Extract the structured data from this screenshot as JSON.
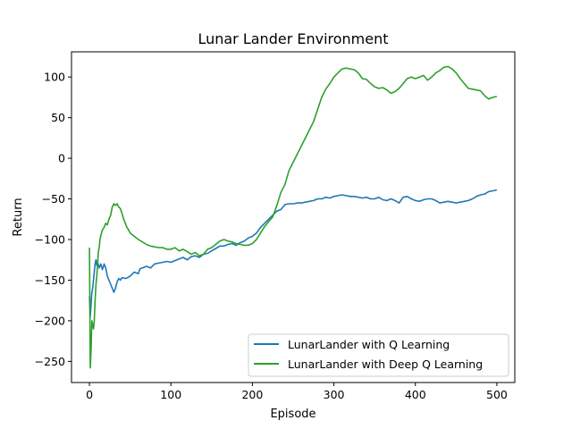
{
  "chart_data": {
    "type": "line",
    "title": "Lunar Lander Environment",
    "xlabel": "Episode",
    "ylabel": "Return",
    "xlim": [
      -22,
      522
    ],
    "ylim": [
      -276,
      131
    ],
    "xticks": [
      0,
      100,
      200,
      300,
      400,
      500
    ],
    "yticks": [
      -250,
      -200,
      -150,
      -100,
      -50,
      0,
      50,
      100
    ],
    "xtick_labels": [
      "0",
      "100",
      "200",
      "300",
      "400",
      "500"
    ],
    "ytick_labels": [
      "−250",
      "−200",
      "−150",
      "−100",
      "−50",
      "0",
      "50",
      "100"
    ],
    "grid": false,
    "legend_position": "lower-right",
    "series": [
      {
        "name": "LunarLander with Q Learning",
        "color": "#1f77b4",
        "points": [
          [
            0,
            -170
          ],
          [
            1,
            -195
          ],
          [
            2,
            -180
          ],
          [
            3,
            -165
          ],
          [
            4,
            -160
          ],
          [
            5,
            -150
          ],
          [
            6,
            -140
          ],
          [
            7,
            -130
          ],
          [
            8,
            -125
          ],
          [
            9,
            -132
          ],
          [
            10,
            -128
          ],
          [
            12,
            -135
          ],
          [
            14,
            -130
          ],
          [
            16,
            -137
          ],
          [
            18,
            -130
          ],
          [
            20,
            -135
          ],
          [
            22,
            -145
          ],
          [
            24,
            -150
          ],
          [
            26,
            -155
          ],
          [
            28,
            -160
          ],
          [
            30,
            -165
          ],
          [
            32,
            -160
          ],
          [
            34,
            -152
          ],
          [
            36,
            -148
          ],
          [
            38,
            -150
          ],
          [
            40,
            -147
          ],
          [
            45,
            -148
          ],
          [
            50,
            -145
          ],
          [
            55,
            -140
          ],
          [
            60,
            -142
          ],
          [
            62,
            -136
          ],
          [
            65,
            -135
          ],
          [
            70,
            -133
          ],
          [
            75,
            -135
          ],
          [
            80,
            -130
          ],
          [
            85,
            -129
          ],
          [
            90,
            -128
          ],
          [
            95,
            -127
          ],
          [
            100,
            -128
          ],
          [
            105,
            -126
          ],
          [
            110,
            -124
          ],
          [
            115,
            -122
          ],
          [
            120,
            -125
          ],
          [
            125,
            -121
          ],
          [
            130,
            -120
          ],
          [
            135,
            -122
          ],
          [
            140,
            -118
          ],
          [
            145,
            -117
          ],
          [
            150,
            -114
          ],
          [
            155,
            -111
          ],
          [
            160,
            -108
          ],
          [
            165,
            -108
          ],
          [
            170,
            -106
          ],
          [
            175,
            -105
          ],
          [
            180,
            -107
          ],
          [
            185,
            -104
          ],
          [
            190,
            -102
          ],
          [
            195,
            -98
          ],
          [
            200,
            -96
          ],
          [
            205,
            -92
          ],
          [
            210,
            -85
          ],
          [
            215,
            -80
          ],
          [
            220,
            -75
          ],
          [
            225,
            -70
          ],
          [
            230,
            -65
          ],
          [
            235,
            -63
          ],
          [
            240,
            -57
          ],
          [
            245,
            -56
          ],
          [
            250,
            -56
          ],
          [
            255,
            -55
          ],
          [
            260,
            -55
          ],
          [
            265,
            -54
          ],
          [
            270,
            -53
          ],
          [
            275,
            -52
          ],
          [
            280,
            -50
          ],
          [
            285,
            -50
          ],
          [
            290,
            -48
          ],
          [
            295,
            -49
          ],
          [
            300,
            -47
          ],
          [
            305,
            -46
          ],
          [
            310,
            -45
          ],
          [
            315,
            -46
          ],
          [
            320,
            -47
          ],
          [
            325,
            -47
          ],
          [
            330,
            -48
          ],
          [
            335,
            -49
          ],
          [
            340,
            -48
          ],
          [
            345,
            -50
          ],
          [
            350,
            -50
          ],
          [
            355,
            -48
          ],
          [
            360,
            -51
          ],
          [
            365,
            -52
          ],
          [
            370,
            -50
          ],
          [
            375,
            -52
          ],
          [
            380,
            -55
          ],
          [
            385,
            -48
          ],
          [
            390,
            -47
          ],
          [
            395,
            -50
          ],
          [
            400,
            -52
          ],
          [
            405,
            -53
          ],
          [
            410,
            -51
          ],
          [
            415,
            -50
          ],
          [
            420,
            -50
          ],
          [
            425,
            -52
          ],
          [
            430,
            -55
          ],
          [
            435,
            -54
          ],
          [
            440,
            -53
          ],
          [
            445,
            -54
          ],
          [
            450,
            -55
          ],
          [
            455,
            -54
          ],
          [
            460,
            -53
          ],
          [
            465,
            -52
          ],
          [
            470,
            -50
          ],
          [
            475,
            -47
          ],
          [
            480,
            -45
          ],
          [
            485,
            -44
          ],
          [
            490,
            -41
          ],
          [
            495,
            -40
          ],
          [
            500,
            -39
          ]
        ]
      },
      {
        "name": "LunarLander with Deep Q Learning",
        "color": "#2ca02c",
        "points": [
          [
            0,
            -110
          ],
          [
            1,
            -258
          ],
          [
            2,
            -235
          ],
          [
            3,
            -200
          ],
          [
            4,
            -205
          ],
          [
            5,
            -210
          ],
          [
            6,
            -200
          ],
          [
            7,
            -175
          ],
          [
            8,
            -155
          ],
          [
            9,
            -145
          ],
          [
            10,
            -130
          ],
          [
            11,
            -115
          ],
          [
            12,
            -110
          ],
          [
            13,
            -100
          ],
          [
            14,
            -95
          ],
          [
            16,
            -88
          ],
          [
            18,
            -85
          ],
          [
            20,
            -80
          ],
          [
            22,
            -82
          ],
          [
            24,
            -75
          ],
          [
            26,
            -70
          ],
          [
            28,
            -60
          ],
          [
            30,
            -56
          ],
          [
            32,
            -58
          ],
          [
            34,
            -56
          ],
          [
            36,
            -60
          ],
          [
            38,
            -62
          ],
          [
            40,
            -68
          ],
          [
            42,
            -75
          ],
          [
            44,
            -80
          ],
          [
            46,
            -85
          ],
          [
            48,
            -88
          ],
          [
            50,
            -92
          ],
          [
            55,
            -96
          ],
          [
            60,
            -100
          ],
          [
            65,
            -103
          ],
          [
            70,
            -106
          ],
          [
            75,
            -108
          ],
          [
            80,
            -109
          ],
          [
            85,
            -110
          ],
          [
            90,
            -110
          ],
          [
            95,
            -112
          ],
          [
            100,
            -112
          ],
          [
            105,
            -110
          ],
          [
            110,
            -114
          ],
          [
            115,
            -112
          ],
          [
            120,
            -115
          ],
          [
            125,
            -118
          ],
          [
            130,
            -116
          ],
          [
            135,
            -120
          ],
          [
            140,
            -118
          ],
          [
            145,
            -112
          ],
          [
            150,
            -110
          ],
          [
            155,
            -106
          ],
          [
            160,
            -102
          ],
          [
            165,
            -100
          ],
          [
            170,
            -102
          ],
          [
            175,
            -103
          ],
          [
            180,
            -105
          ],
          [
            185,
            -106
          ],
          [
            190,
            -107
          ],
          [
            195,
            -107
          ],
          [
            200,
            -105
          ],
          [
            205,
            -100
          ],
          [
            210,
            -92
          ],
          [
            215,
            -84
          ],
          [
            220,
            -78
          ],
          [
            225,
            -72
          ],
          [
            230,
            -58
          ],
          [
            235,
            -42
          ],
          [
            240,
            -32
          ],
          [
            245,
            -15
          ],
          [
            250,
            -5
          ],
          [
            255,
            5
          ],
          [
            260,
            15
          ],
          [
            265,
            25
          ],
          [
            270,
            35
          ],
          [
            275,
            45
          ],
          [
            280,
            60
          ],
          [
            285,
            75
          ],
          [
            290,
            85
          ],
          [
            295,
            92
          ],
          [
            300,
            100
          ],
          [
            305,
            105
          ],
          [
            310,
            110
          ],
          [
            315,
            111
          ],
          [
            320,
            110
          ],
          [
            325,
            109
          ],
          [
            330,
            105
          ],
          [
            335,
            98
          ],
          [
            340,
            97
          ],
          [
            345,
            92
          ],
          [
            350,
            88
          ],
          [
            355,
            86
          ],
          [
            360,
            87
          ],
          [
            365,
            84
          ],
          [
            370,
            80
          ],
          [
            375,
            82
          ],
          [
            380,
            86
          ],
          [
            385,
            92
          ],
          [
            390,
            98
          ],
          [
            395,
            100
          ],
          [
            400,
            98
          ],
          [
            405,
            100
          ],
          [
            410,
            102
          ],
          [
            415,
            96
          ],
          [
            420,
            100
          ],
          [
            425,
            105
          ],
          [
            430,
            108
          ],
          [
            435,
            112
          ],
          [
            440,
            113
          ],
          [
            445,
            110
          ],
          [
            450,
            105
          ],
          [
            455,
            98
          ],
          [
            460,
            92
          ],
          [
            465,
            86
          ],
          [
            470,
            85
          ],
          [
            475,
            84
          ],
          [
            480,
            83
          ],
          [
            485,
            77
          ],
          [
            490,
            73
          ],
          [
            495,
            75
          ],
          [
            500,
            76
          ]
        ]
      }
    ]
  }
}
